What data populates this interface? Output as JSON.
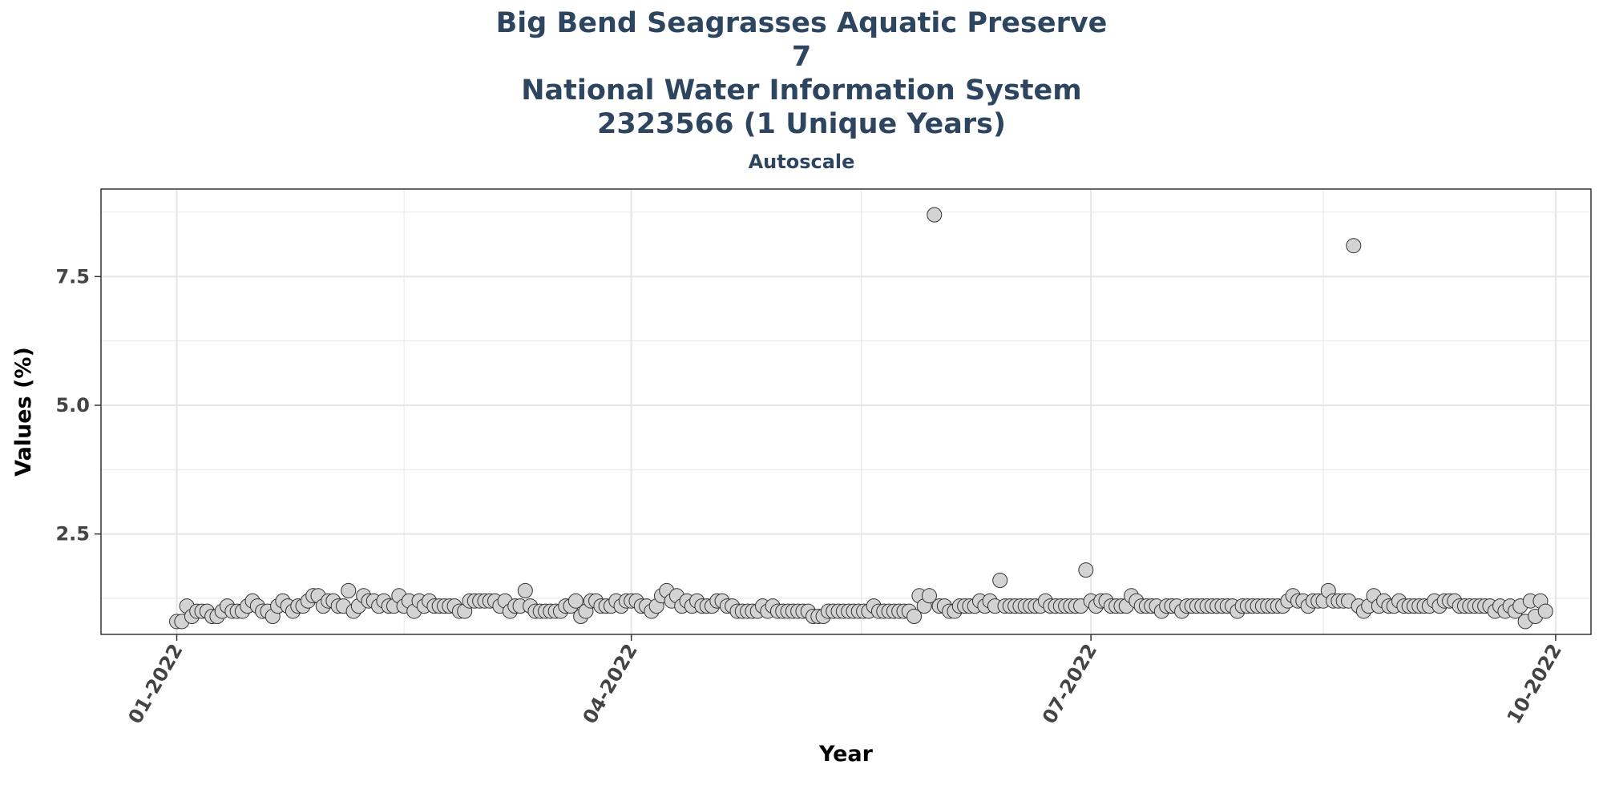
{
  "titles": {
    "line1": "Big Bend Seagrasses Aquatic Preserve",
    "line2": "7",
    "line3": "National Water Information System",
    "line4": "2323566 (1 Unique Years)"
  },
  "chart_data": {
    "type": "scatter",
    "subtitle": "Autoscale",
    "xlabel": "Year",
    "ylabel": "Values (%)",
    "xlim": [
      "2021-12-17",
      "2022-10-08"
    ],
    "ylim": [
      0.55,
      9.2
    ],
    "x_ticks": [
      "2022-01-01",
      "2022-04-01",
      "2022-07-01",
      "2022-10-01"
    ],
    "x_tick_labels": [
      "01-2022",
      "04-2022",
      "07-2022",
      "10-2022"
    ],
    "y_ticks": [
      2.5,
      5.0,
      7.5
    ],
    "y_tick_labels": [
      "2.5",
      "5.0",
      "7.5"
    ],
    "grid": true,
    "colors": {
      "point_fill": "#d3d3d3",
      "point_stroke": "#333333",
      "grid": "#e6e6e6",
      "title": "#2e4560"
    },
    "series": [
      {
        "start_date": "2022-01-01",
        "step_days": 1,
        "values": [
          0.8,
          0.8,
          1.1,
          0.9,
          1.0,
          1.0,
          1.0,
          0.9,
          0.9,
          1.0,
          1.1,
          1.0,
          1.0,
          1.0,
          1.1,
          1.2,
          1.1,
          1.0,
          1.0,
          0.9,
          1.1,
          1.2,
          1.1,
          1.0,
          1.1,
          1.1,
          1.2,
          1.3,
          1.3,
          1.1,
          1.2,
          1.2,
          1.1,
          1.1,
          1.4,
          1.0,
          1.1,
          1.3,
          1.2,
          1.2,
          1.1,
          1.2,
          1.1,
          1.1,
          1.3,
          1.1,
          1.2,
          1.0,
          1.2,
          1.1,
          1.2,
          1.1,
          1.1,
          1.1,
          1.1,
          1.1,
          1.0,
          1.0,
          1.2,
          1.2,
          1.2,
          1.2,
          1.2,
          1.2,
          1.1,
          1.2,
          1.0,
          1.1,
          1.1,
          1.4,
          1.1,
          1.0,
          1.0,
          1.0,
          1.0,
          1.0,
          1.0,
          1.1,
          1.1,
          1.2,
          0.9,
          1.0,
          1.2,
          1.2,
          1.1,
          1.1,
          1.1,
          1.2,
          1.1,
          1.2,
          1.2,
          1.2,
          1.1,
          1.1,
          1.0,
          1.1,
          1.3,
          1.4,
          1.2,
          1.3,
          1.1,
          1.2,
          1.1,
          1.2,
          1.1,
          1.1,
          1.1,
          1.2,
          1.2,
          1.1,
          1.1,
          1.0,
          1.0,
          1.0,
          1.0,
          1.0,
          1.1,
          1.0,
          1.1,
          1.0,
          1.0,
          1.0,
          1.0,
          1.0,
          1.0,
          1.0,
          0.9,
          0.9,
          0.9,
          1.0,
          1.0,
          1.0,
          1.0,
          1.0,
          1.0,
          1.0,
          1.0,
          1.0,
          1.1,
          1.0,
          1.0,
          1.0,
          1.0,
          1.0,
          1.0,
          1.0,
          0.9,
          1.3,
          1.1,
          1.3,
          8.7,
          1.1,
          1.1,
          1.0,
          1.0,
          1.1,
          1.1,
          1.1,
          1.1,
          1.2,
          1.1,
          1.2,
          1.1,
          1.6,
          1.1,
          1.1,
          1.1,
          1.1,
          1.1,
          1.1,
          1.1,
          1.1,
          1.2,
          1.1,
          1.1,
          1.1,
          1.1,
          1.1,
          1.1,
          1.1,
          1.8,
          1.2,
          1.1,
          1.2,
          1.2,
          1.1,
          1.1,
          1.1,
          1.1,
          1.3,
          1.2,
          1.1,
          1.1,
          1.1,
          1.1,
          1.0,
          1.1,
          1.1,
          1.1,
          1.0,
          1.1,
          1.1,
          1.1,
          1.1,
          1.1,
          1.1,
          1.1,
          1.1,
          1.1,
          1.1,
          1.0,
          1.1,
          1.1,
          1.1,
          1.1,
          1.1,
          1.1,
          1.1,
          1.1,
          1.1,
          1.2,
          1.3,
          1.2,
          1.2,
          1.1,
          1.2,
          1.2,
          1.2,
          1.4,
          1.2,
          1.2,
          1.2,
          1.2,
          8.1,
          1.1,
          1.0,
          1.1,
          1.3,
          1.1,
          1.2,
          1.1,
          1.1,
          1.2,
          1.1,
          1.1,
          1.1,
          1.1,
          1.1,
          1.1,
          1.2,
          1.1,
          1.2,
          1.2,
          1.2,
          1.1,
          1.1,
          1.1,
          1.1,
          1.1,
          1.1,
          1.1,
          1.0,
          1.1,
          1.0,
          1.1,
          1.0,
          1.1,
          0.8,
          1.2,
          0.9,
          1.2,
          1.0
        ]
      }
    ]
  }
}
